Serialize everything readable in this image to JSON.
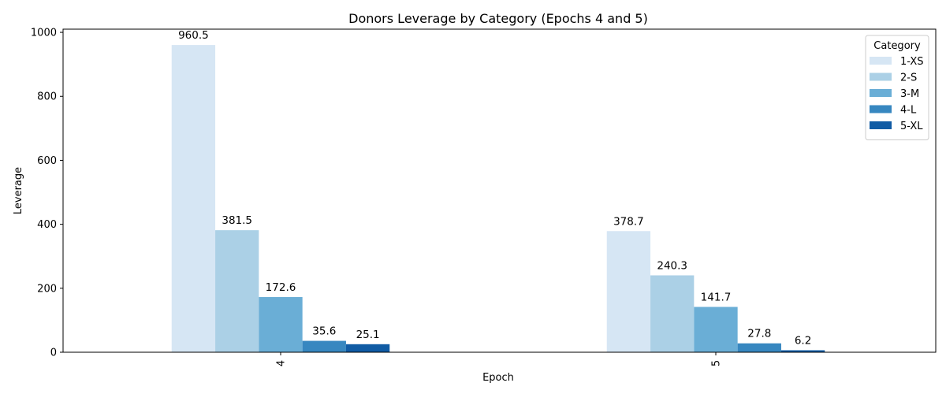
{
  "chart_data": {
    "type": "bar",
    "title": "Donors Leverage by Category (Epochs 4 and 5)",
    "xlabel": "Epoch",
    "ylabel": "Leverage",
    "categories": [
      "4",
      "5"
    ],
    "ylim": [
      0,
      1010
    ],
    "yticks": [
      0,
      200,
      400,
      600,
      800,
      1000
    ],
    "grid": false,
    "legend": {
      "title": "Category",
      "position": "top-right"
    },
    "series": [
      {
        "name": "1-XS",
        "color": "#d6e6f4",
        "values": [
          960.5,
          378.7
        ]
      },
      {
        "name": "2-S",
        "color": "#abd0e6",
        "values": [
          381.5,
          240.3
        ]
      },
      {
        "name": "3-M",
        "color": "#6aaed6",
        "values": [
          172.6,
          141.7
        ]
      },
      {
        "name": "4-L",
        "color": "#3787c0",
        "values": [
          35.6,
          27.8
        ]
      },
      {
        "name": "5-XL",
        "color": "#105ba4",
        "values": [
          25.1,
          6.2
        ]
      }
    ]
  }
}
